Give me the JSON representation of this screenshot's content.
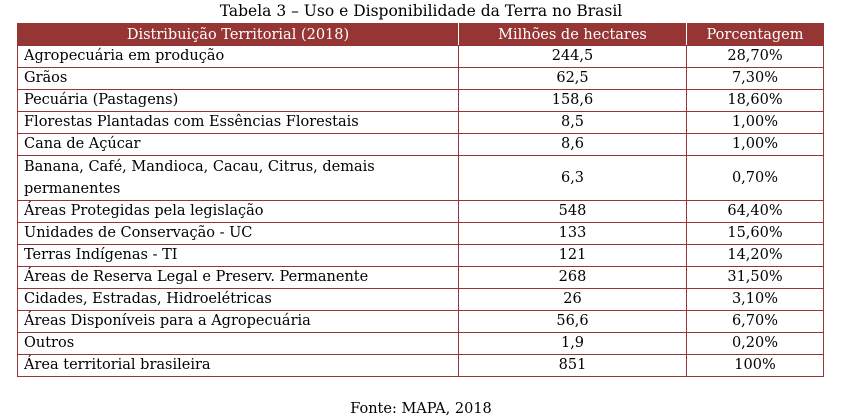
{
  "caption": "Tabela 3 – Uso e Disponibilidade da Terra no Brasil",
  "table": {
    "headers": [
      "Distribuição Territorial (2018)",
      "Milhões de hectares",
      "Porcentagem"
    ],
    "rows": [
      {
        "label": "Agropecuária em produção",
        "hectares": "244,5",
        "percent": "28,70%"
      },
      {
        "label": "Grãos",
        "hectares": "62,5",
        "percent": "7,30%"
      },
      {
        "label": "Pecuária (Pastagens)",
        "hectares": "158,6",
        "percent": "18,60%"
      },
      {
        "label": "Florestas Plantadas com Essências Florestais",
        "hectares": "8,5",
        "percent": "1,00%"
      },
      {
        "label": "Cana de Açúcar",
        "hectares": "8,6",
        "percent": "1,00%"
      },
      {
        "label": "Banana, Café, Mandioca, Cacau, Citrus, demais permanentes",
        "hectares": "6,3",
        "percent": "0,70%"
      },
      {
        "label": "Áreas Protegidas pela legislação",
        "hectares": "548",
        "percent": "64,40%"
      },
      {
        "label": "Unidades de Conservação - UC",
        "hectares": "133",
        "percent": "15,60%"
      },
      {
        "label": "Terras Indígenas - TI",
        "hectares": "121",
        "percent": "14,20%"
      },
      {
        "label": "Áreas de Reserva Legal e Preserv. Permanente",
        "hectares": "268",
        "percent": "31,50%"
      },
      {
        "label": "Cidades, Estradas, Hidroelétricas",
        "hectares": "26",
        "percent": "3,10%"
      },
      {
        "label": "Áreas Disponíveis para a Agropecuária",
        "hectares": "56,6",
        "percent": "6,70%"
      },
      {
        "label": "Outros",
        "hectares": "1,9",
        "percent": "0,20%"
      },
      {
        "label": "Área territorial brasileira",
        "hectares": "851",
        "percent": "100%"
      }
    ]
  },
  "source": "Fonte:  MAPA, 2018",
  "colors": {
    "header_bg": "#963634",
    "border": "#963634",
    "header_text": "#ffffff"
  }
}
